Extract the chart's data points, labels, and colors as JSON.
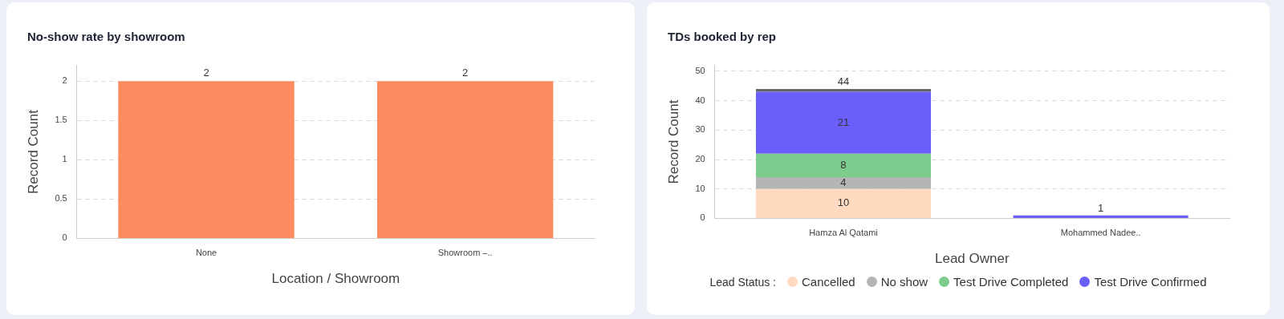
{
  "chart_data": [
    {
      "type": "bar",
      "title": "No-show rate by showroom",
      "xlabel": "Location / Showroom",
      "ylabel": "Record Count",
      "categories": [
        "None",
        "Showroom –.."
      ],
      "values": [
        2,
        2
      ],
      "color": "#ff8c61",
      "ylim": [
        0,
        2.2
      ],
      "yticks": [
        0,
        0.5,
        1,
        1.5,
        2
      ],
      "grid": "y",
      "data_labels": true,
      "legend": false
    },
    {
      "type": "bar",
      "title": "TDs booked by rep",
      "xlabel": "Lead Owner",
      "ylabel": "Record Count",
      "legend_title": "Lead Status :",
      "categories": [
        "Hamza Al Qatami",
        "Mohammed Nadee.."
      ],
      "stacked": true,
      "series": [
        {
          "name": "Cancelled",
          "color": "#ffd9c0",
          "values": [
            10,
            0
          ],
          "value_labels": [
            "10",
            null
          ]
        },
        {
          "name": "No show",
          "color": "#b5b5b5",
          "values": [
            4,
            0
          ],
          "value_labels": [
            "4",
            null
          ]
        },
        {
          "name": "Test Drive Completed",
          "color": "#7dcb8d",
          "values": [
            8,
            0
          ],
          "value_labels": [
            "8",
            null
          ]
        },
        {
          "name": "Test Drive Confirmed",
          "color": "#6b5ffc",
          "values": [
            21,
            1
          ],
          "value_labels": [
            "21",
            null
          ]
        },
        {
          "color": "#666666",
          "values": [
            1,
            0
          ]
        }
      ],
      "totals": [
        "44",
        "1"
      ],
      "ylim": [
        0,
        52
      ],
      "yticks": [
        0,
        10,
        20,
        30,
        40,
        50
      ],
      "grid": "y",
      "legend": "bottom"
    }
  ]
}
